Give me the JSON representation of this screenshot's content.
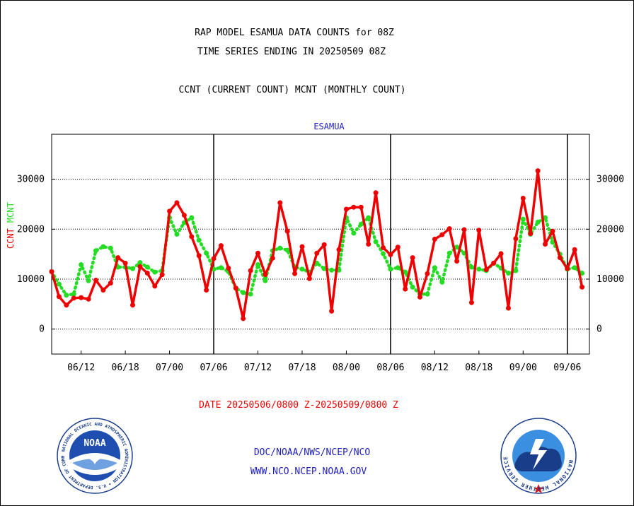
{
  "header": {
    "title_line1": "RAP MODEL ESAMUA DATA COUNTS for 08Z",
    "title_line2": "TIME SERIES ENDING IN 20250509 08Z",
    "subtitle": "CCNT (CURRENT COUNT) MCNT (MONTHLY COUNT)"
  },
  "footer": {
    "date_range": "DATE 20250506/0800 Z-20250509/0800 Z",
    "link1": "DOC/NOAA/NWS/NCEP/NCO",
    "link2": "WWW.NCO.NCEP.NOAA.GOV"
  },
  "logos": {
    "noaa_text": "NOAA",
    "nws_text": "NATIONAL WEATHER SERVICE"
  },
  "colors": {
    "ccnt": "#ee0000",
    "mcnt": "#22dd22",
    "axis": "#000000",
    "panel_title": "#2020c0"
  },
  "chart_data": {
    "type": "line",
    "panel_title": "ESAMUA",
    "ylabel_ccnt": "CCNT",
    "ylabel_mcnt": "MCNT",
    "ylim": [
      -5000,
      39000
    ],
    "yticks": [
      0,
      10000,
      20000,
      30000
    ],
    "ytick_labels": [
      "0",
      "10000",
      "20000",
      "30000"
    ],
    "xlim": [
      0,
      73
    ],
    "xtick_labels": [
      "06/12",
      "06/18",
      "07/00",
      "07/06",
      "07/12",
      "07/18",
      "08/00",
      "08/06",
      "08/12",
      "08/18",
      "09/00",
      "09/06"
    ],
    "xtick_positions": [
      4,
      10,
      16,
      22,
      28,
      34,
      40,
      46,
      52,
      58,
      64,
      70
    ],
    "day_boundaries": [
      22,
      46,
      70
    ],
    "grid": "horizontal dotted",
    "series": [
      {
        "name": "CCNT",
        "color": "#ee0000",
        "style": "solid",
        "values": [
          11500,
          6500,
          4800,
          6200,
          6300,
          6000,
          9800,
          7800,
          9200,
          14300,
          13200,
          4800,
          12500,
          11200,
          8600,
          10900,
          23600,
          25300,
          22800,
          18500,
          14700,
          7800,
          14100,
          16700,
          12200,
          8200,
          2100,
          11700,
          15200,
          10900,
          14200,
          25300,
          19600,
          11100,
          16500,
          10100,
          15200,
          16900,
          3600,
          15900,
          24000,
          24400,
          24400,
          17000,
          27300,
          16300,
          14900,
          16400,
          8000,
          14300,
          6400,
          11100,
          18000,
          18900,
          20100,
          13600,
          19900,
          5300,
          19800,
          11900,
          13200,
          15100,
          4200,
          18100,
          26200,
          19100,
          31700,
          17000,
          19600,
          14300,
          12100,
          15900,
          8400
        ]
      },
      {
        "name": "MCNT",
        "color": "#22dd22",
        "style": "dotted",
        "values": [
          11500,
          9000,
          6800,
          7000,
          12900,
          9700,
          15700,
          16500,
          16200,
          12400,
          12400,
          12100,
          13300,
          12400,
          11400,
          11700,
          22300,
          19000,
          21300,
          22300,
          17800,
          15200,
          12000,
          12300,
          11500,
          8200,
          7300,
          7000,
          12900,
          9700,
          15700,
          16200,
          15800,
          12400,
          12000,
          11400,
          13200,
          12100,
          11800,
          11800,
          22300,
          19200,
          21000,
          22300,
          17500,
          15100,
          12000,
          12300,
          11400,
          8400,
          7000,
          7000,
          12300,
          9400,
          15200,
          16400,
          15200,
          12400,
          12000,
          11700,
          13200,
          12200,
          11200,
          11700,
          22000,
          19000,
          21400,
          22300,
          17400,
          15000,
          12000,
          12300,
          11200
        ]
      }
    ]
  }
}
